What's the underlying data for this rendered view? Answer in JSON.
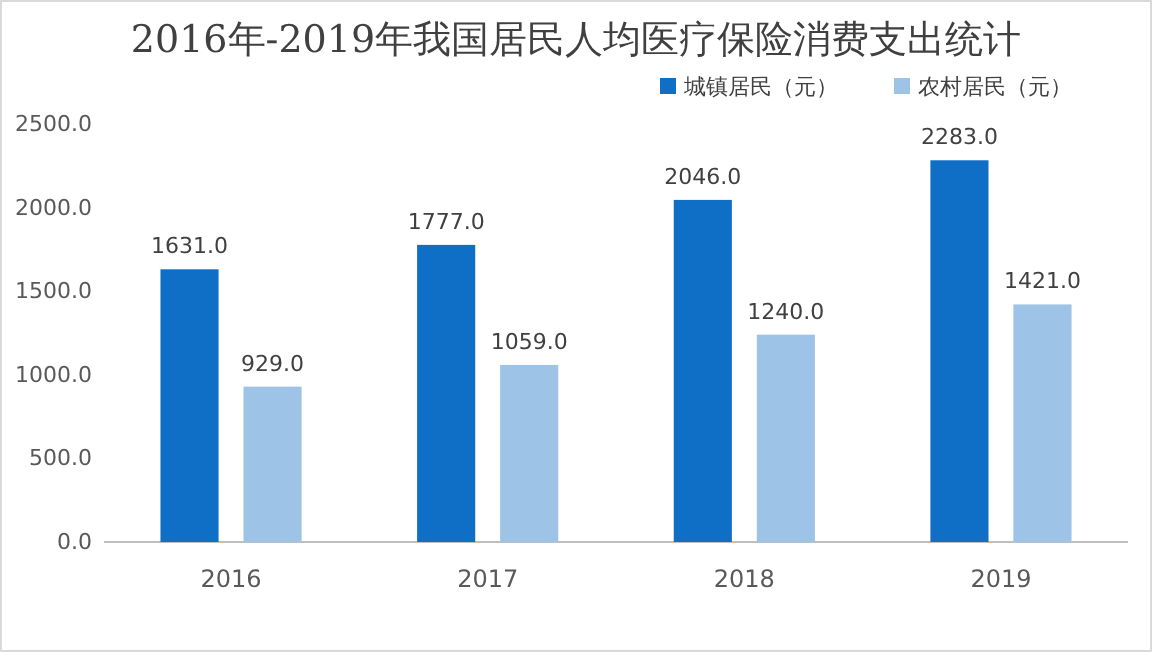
{
  "chart_data": {
    "type": "bar",
    "title": "2016年-2019年我国居民人均医疗保险消费支出统计",
    "categories": [
      "2016",
      "2017",
      "2018",
      "2019"
    ],
    "series": [
      {
        "name": "城镇居民（元）",
        "color": "#0f6fc6",
        "values": [
          1631,
          1777,
          2046,
          2283
        ],
        "value_labels": [
          "1631.0",
          "1777.0",
          "2046.0",
          "2283.0"
        ]
      },
      {
        "name": "农村居民（元）",
        "color": "#9dc3e6",
        "values": [
          929,
          1059,
          1240,
          1421
        ],
        "value_labels": [
          "929.0",
          "1059.0",
          "1240.0",
          "1421.0"
        ]
      }
    ],
    "ylim": [
      0,
      2500
    ],
    "yticks": [
      {
        "value": 0,
        "label": "0.0"
      },
      {
        "value": 500,
        "label": "500.0"
      },
      {
        "value": 1000,
        "label": "1000.0"
      },
      {
        "value": 1500,
        "label": "1500.0"
      },
      {
        "value": 2000,
        "label": "2000.0"
      },
      {
        "value": 2500,
        "label": "2500.0"
      }
    ],
    "legend": "top right",
    "grid": false
  }
}
